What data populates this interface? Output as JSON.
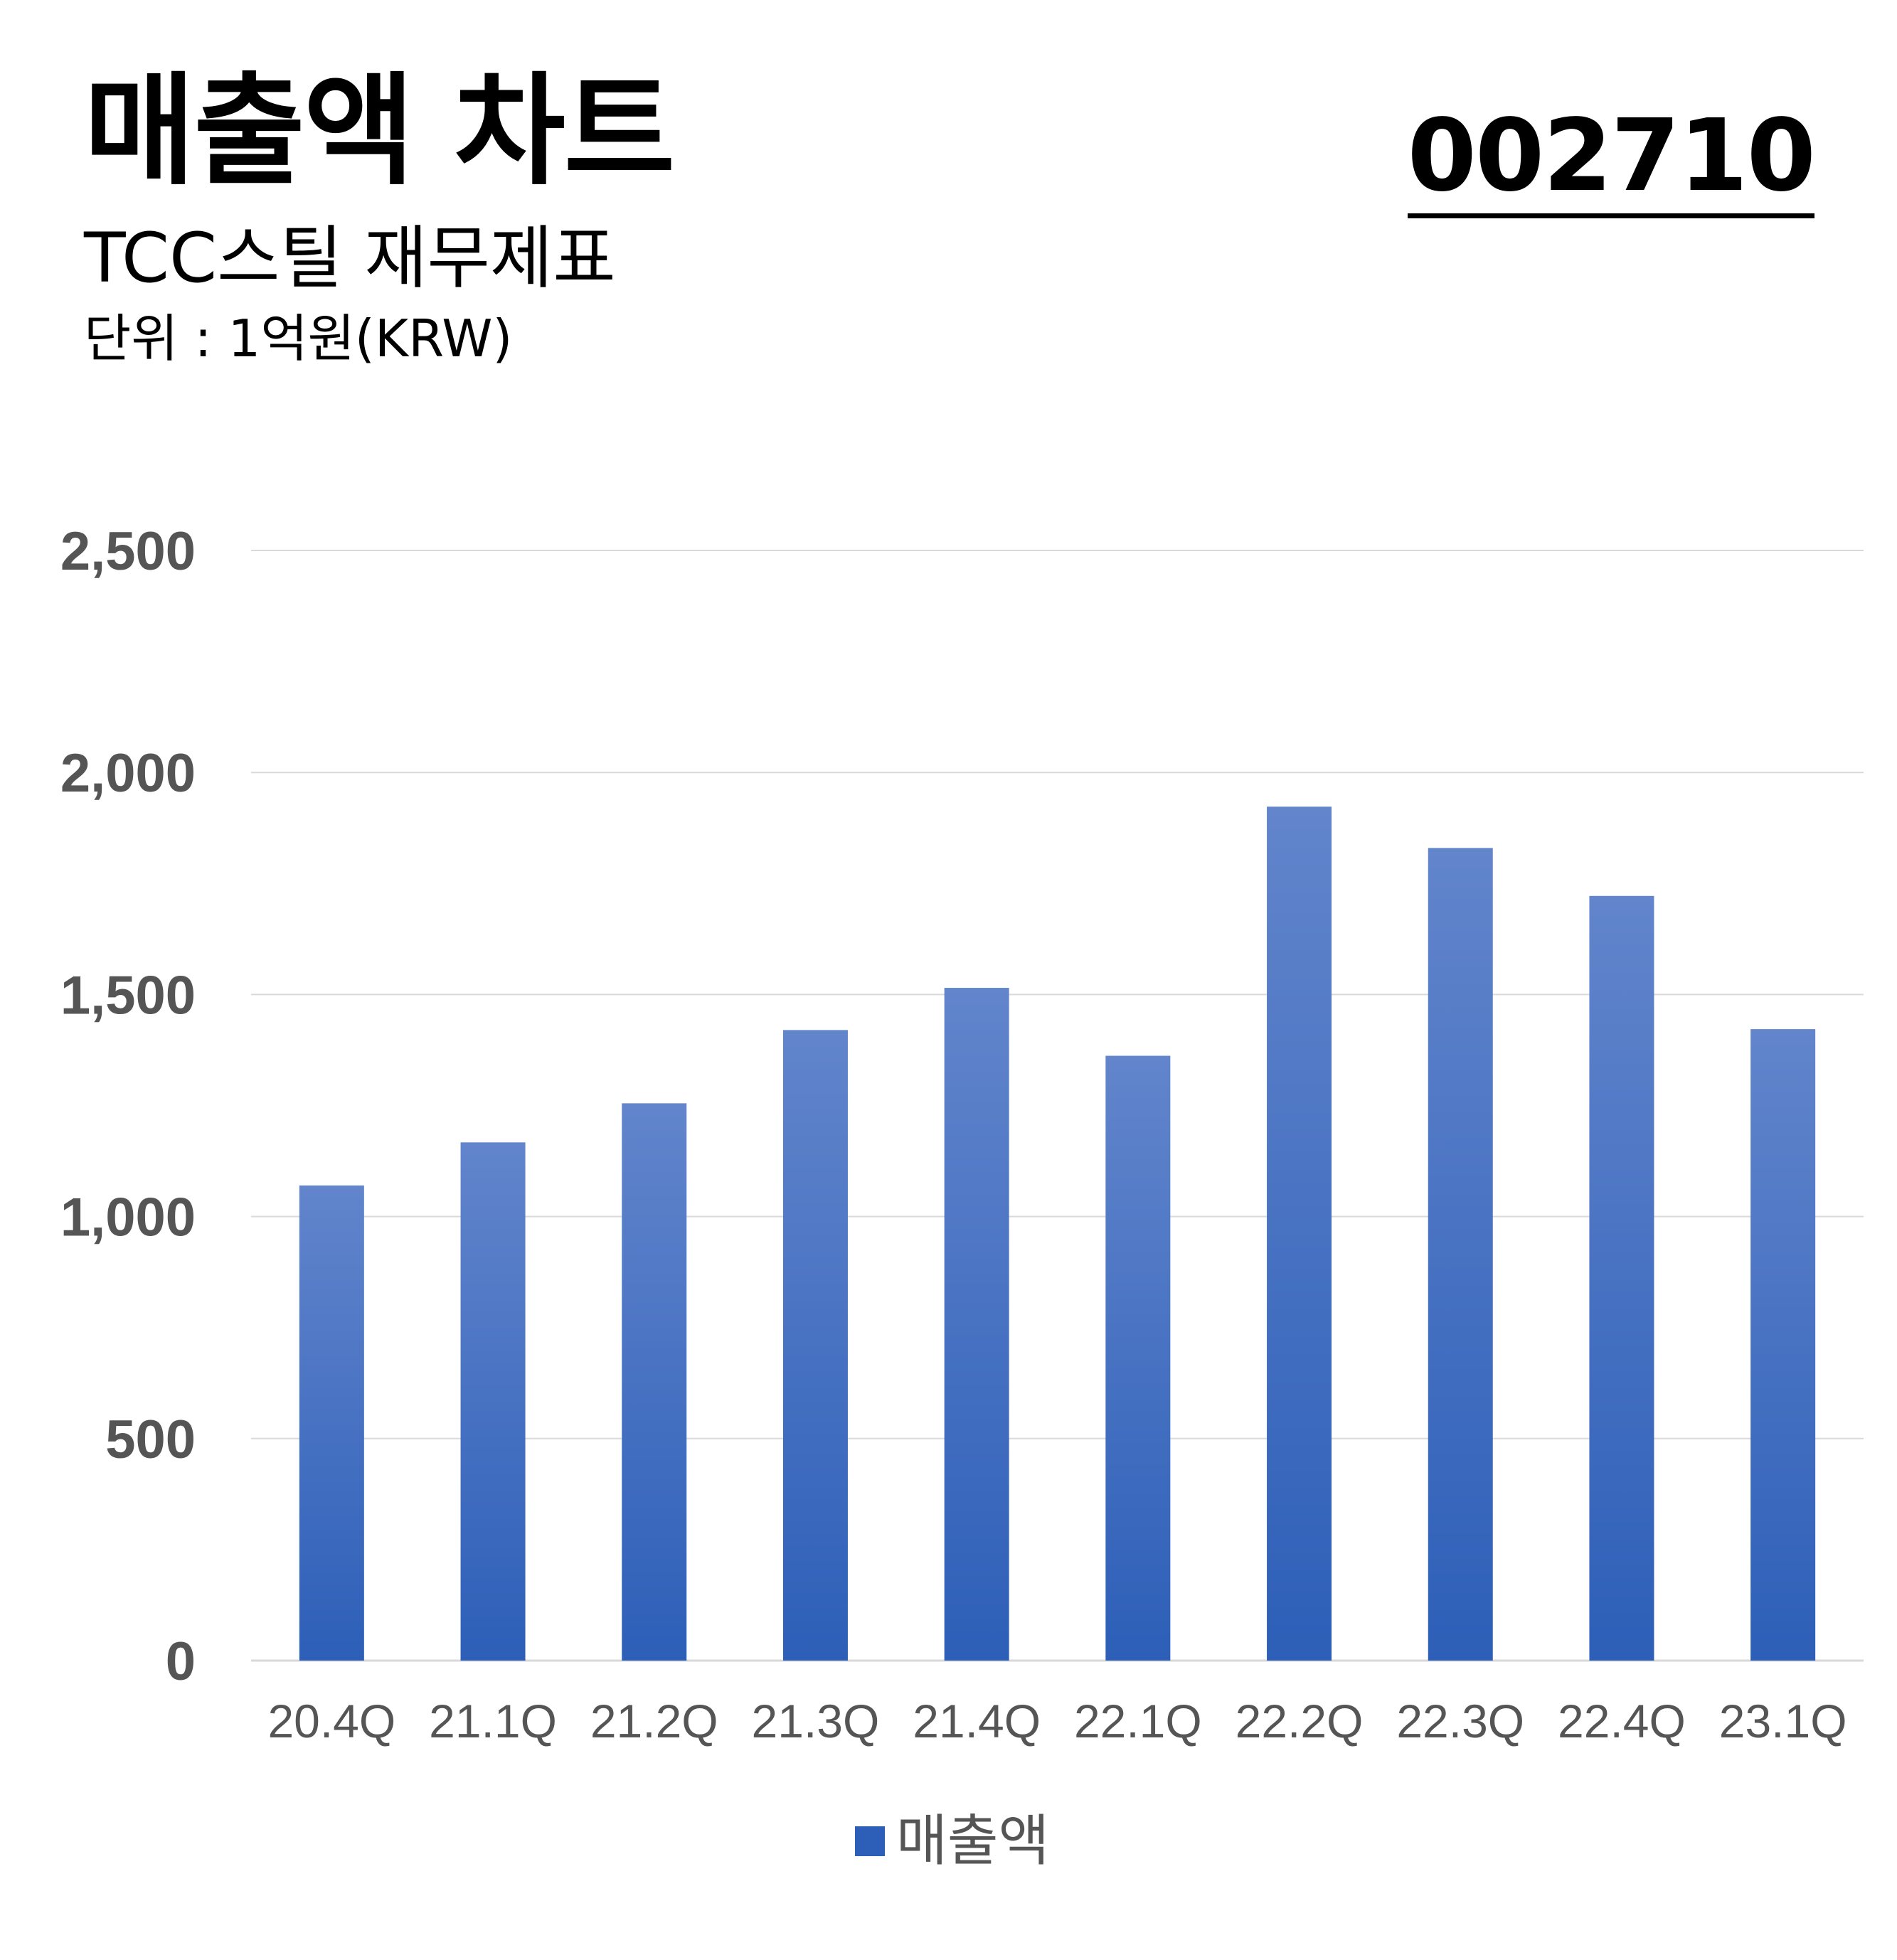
{
  "header": {
    "title": "매출액 차트",
    "subtitle": "TCC스틸 재무제표",
    "unit": "단위 : 1억원(KRW)",
    "code": "002710"
  },
  "chart_data": {
    "type": "bar",
    "categories": [
      "20.4Q",
      "21.1Q",
      "21.2Q",
      "21.3Q",
      "21.4Q",
      "22.1Q",
      "22.2Q",
      "22.3Q",
      "22.4Q",
      "23.1Q"
    ],
    "series": [
      {
        "name": "매출액",
        "values": [
          1070,
          1167,
          1255,
          1420,
          1515,
          1362,
          1923,
          1830,
          1722,
          1422
        ]
      }
    ],
    "ylim": [
      0,
      2500
    ],
    "yticks": [
      0,
      500,
      1000,
      1500,
      2000,
      2500
    ],
    "ytick_labels": [
      "0",
      "500",
      "1,000",
      "1,500",
      "2,000",
      "2,500"
    ],
    "grid": true,
    "legend": "bottom",
    "colors": {
      "bar_top": "#6285cc",
      "bar_bottom": "#2d5fb8",
      "grid": "#d9d9d9",
      "axis_text": "#555555"
    }
  }
}
